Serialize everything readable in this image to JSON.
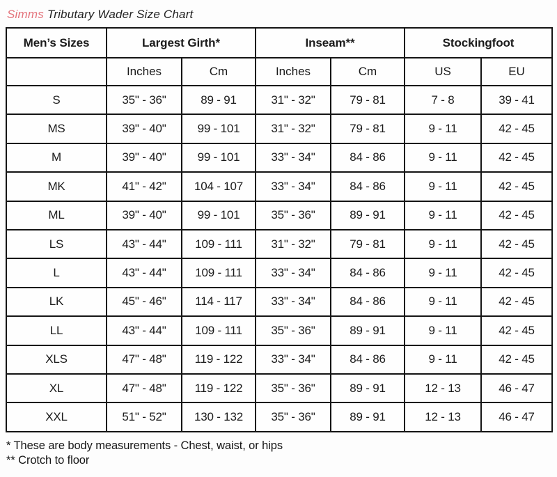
{
  "title": {
    "brand": "Simms",
    "rest": "Tributary Wader Size Chart",
    "brand_color": "#e4737b",
    "text_color": "#2a2a2a"
  },
  "chart_data": {
    "type": "table",
    "title": "Simms Tributary Wader Size Chart",
    "header_groups": [
      {
        "label": "Men’s Sizes",
        "colspan": 1
      },
      {
        "label": "Largest Girth*",
        "colspan": 2
      },
      {
        "label": "Inseam**",
        "colspan": 2
      },
      {
        "label": "Stockingfoot",
        "colspan": 2
      }
    ],
    "subheaders": [
      "",
      "Inches",
      "Cm",
      "Inches",
      "Cm",
      "US",
      "EU"
    ],
    "rows": [
      [
        "S",
        "35\" - 36\"",
        "89 - 91",
        "31\" - 32\"",
        "79 - 81",
        "7 - 8",
        "39 - 41"
      ],
      [
        "MS",
        "39\" - 40\"",
        "99 - 101",
        "31\" - 32\"",
        "79 - 81",
        "9 - 11",
        "42 - 45"
      ],
      [
        "M",
        "39\" - 40\"",
        "99 - 101",
        "33\" - 34\"",
        "84 - 86",
        "9 - 11",
        "42 - 45"
      ],
      [
        "MK",
        "41\" - 42\"",
        "104 - 107",
        "33\" - 34\"",
        "84 - 86",
        "9 - 11",
        "42 - 45"
      ],
      [
        "ML",
        "39\" - 40\"",
        "99 - 101",
        "35\" - 36\"",
        "89 - 91",
        "9 - 11",
        "42 - 45"
      ],
      [
        "LS",
        "43\" - 44\"",
        "109 - 111",
        "31\" - 32\"",
        "79 - 81",
        "9 - 11",
        "42 - 45"
      ],
      [
        "L",
        "43\" - 44\"",
        "109 - 111",
        "33\" - 34\"",
        "84 - 86",
        "9 - 11",
        "42 - 45"
      ],
      [
        "LK",
        "45\" - 46\"",
        "114 - 117",
        "33\" - 34\"",
        "84 - 86",
        "9 - 11",
        "42 - 45"
      ],
      [
        "LL",
        "43\" - 44\"",
        "109 - 111",
        "35\" - 36\"",
        "89 - 91",
        "9 - 11",
        "42 - 45"
      ],
      [
        "XLS",
        "47\" - 48\"",
        "119 - 122",
        "33\" - 34\"",
        "84 - 86",
        "9 - 11",
        "42 - 45"
      ],
      [
        "XL",
        "47\" - 48\"",
        "119 - 122",
        "35\" - 36\"",
        "89 - 91",
        "12 - 13",
        "46 - 47"
      ],
      [
        "XXL",
        "51\" - 52\"",
        "130 - 132",
        "35\" - 36\"",
        "89 - 91",
        "12 - 13",
        "46 - 47"
      ]
    ],
    "border_color": "#141414"
  },
  "footnotes": [
    "* These are body measurements - Chest, waist, or hips",
    "** Crotch to floor"
  ]
}
